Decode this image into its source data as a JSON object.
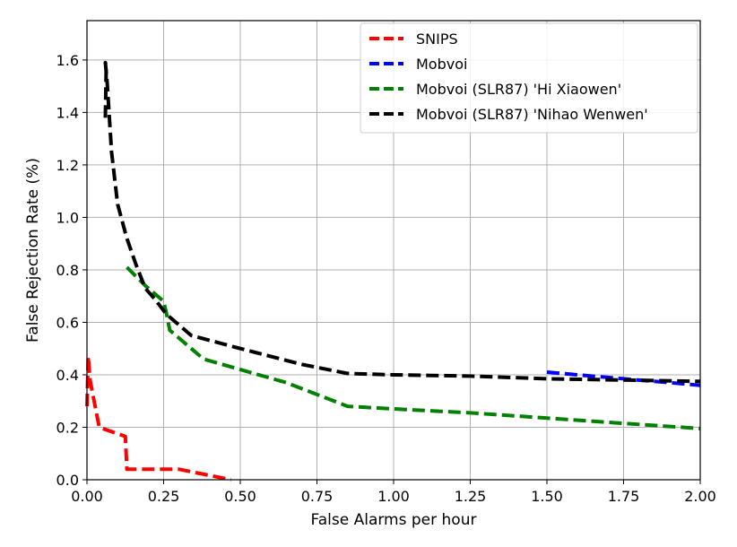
{
  "chart_data": {
    "type": "line",
    "title": "",
    "xlabel": "False Alarms per hour",
    "ylabel": "False Rejection Rate (%)",
    "xlim": [
      0,
      2.0
    ],
    "ylim": [
      0,
      1.75
    ],
    "grid": true,
    "legend_position": "top-right",
    "x_ticks": [
      0.0,
      0.25,
      0.5,
      0.75,
      1.0,
      1.25,
      1.5,
      1.75,
      2.0
    ],
    "x_tick_labels": [
      "0.00",
      "0.25",
      "0.50",
      "0.75",
      "1.00",
      "1.25",
      "1.50",
      "1.75",
      "2.00"
    ],
    "y_ticks": [
      0.0,
      0.2,
      0.4,
      0.6,
      0.8,
      1.0,
      1.2,
      1.4,
      1.6
    ],
    "y_tick_labels": [
      "0.0",
      "0.2",
      "0.4",
      "0.6",
      "0.8",
      "1.0",
      "1.2",
      "1.4",
      "1.6"
    ],
    "series": [
      {
        "name": "SNIPS",
        "color": "#ff0000",
        "x": [
          0.0,
          0.004,
          0.01,
          0.04,
          0.125,
          0.13,
          0.3,
          0.47
        ],
        "y": [
          0.28,
          0.47,
          0.38,
          0.2,
          0.165,
          0.04,
          0.04,
          0.0
        ]
      },
      {
        "name": "Mobvoi",
        "color": "#0000ff",
        "x": [
          1.5,
          1.6,
          1.75,
          1.9,
          2.0
        ],
        "y": [
          0.41,
          0.4,
          0.385,
          0.37,
          0.36
        ]
      },
      {
        "name": "Mobvoi (SLR87) 'Hi Xiaowen'",
        "color": "#008000",
        "x": [
          0.13,
          0.19,
          0.25,
          0.26,
          0.27,
          0.3,
          0.38,
          0.5,
          0.65,
          0.85,
          1.0,
          1.25,
          1.5,
          1.75,
          2.0
        ],
        "y": [
          0.81,
          0.74,
          0.68,
          0.63,
          0.57,
          0.54,
          0.46,
          0.42,
          0.37,
          0.28,
          0.27,
          0.255,
          0.235,
          0.215,
          0.195
        ]
      },
      {
        "name": "Mobvoi (SLR87) 'Nihao Wenwen'",
        "color": "#000000",
        "x": [
          0.06,
          0.063,
          0.06,
          0.066,
          0.08,
          0.1,
          0.13,
          0.16,
          0.19,
          0.22,
          0.26,
          0.34,
          0.5,
          0.7,
          0.85,
          1.0,
          1.25,
          1.5,
          1.75,
          2.0
        ],
        "y": [
          1.38,
          1.58,
          1.59,
          1.51,
          1.25,
          1.05,
          0.92,
          0.82,
          0.73,
          0.69,
          0.63,
          0.55,
          0.5,
          0.44,
          0.405,
          0.4,
          0.395,
          0.385,
          0.38,
          0.375
        ]
      }
    ]
  }
}
